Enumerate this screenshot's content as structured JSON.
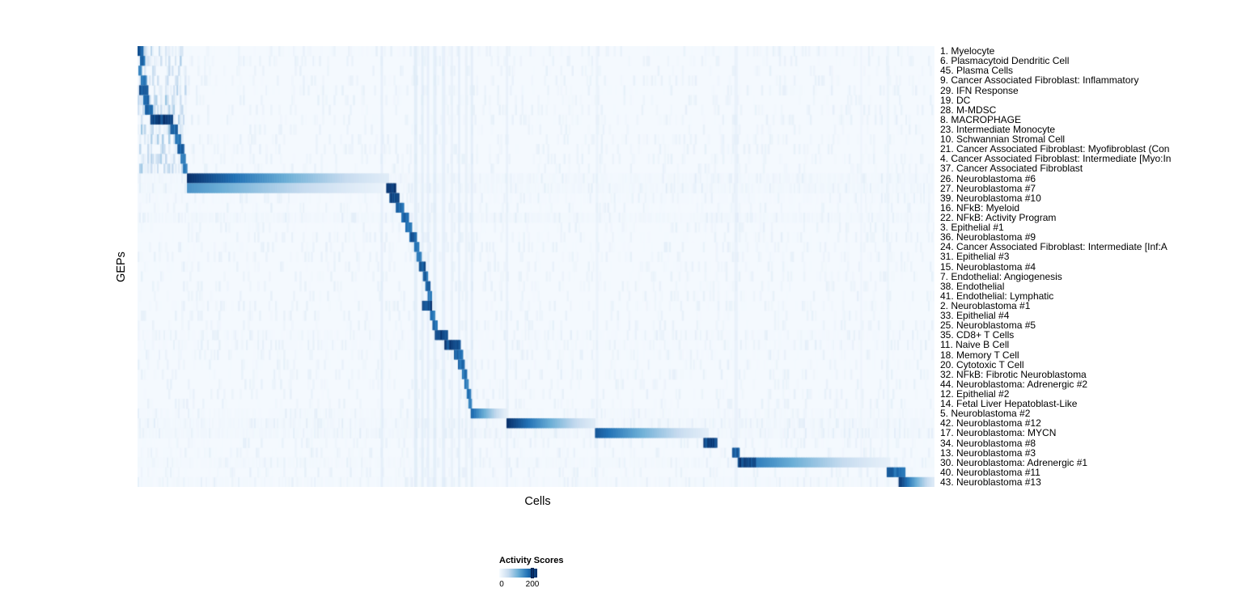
{
  "chart_data": {
    "type": "heatmap",
    "title": "",
    "xlabel": "Cells",
    "ylabel": "GEPs",
    "x_axis_note": "columns are individual cells, unlabeled",
    "legend": {
      "title": "Activity Scores",
      "position": "bottom",
      "tick_labels": [
        "0",
        "200"
      ]
    },
    "colorscale": {
      "palette": "Blues",
      "colors": [
        "#f7fbff",
        "#c6dbef",
        "#6baed6",
        "#2171b5",
        "#08306b"
      ],
      "min": 0,
      "max": 230,
      "tick_values": [
        0,
        200
      ]
    },
    "n_rows": 45,
    "rows": [
      {
        "label": "1. Myelocyte",
        "blocks": [
          [
            0.0,
            0.007,
            210,
            0
          ]
        ],
        "wash": 4
      },
      {
        "label": "6. Plasmacytoid Dendritic Cell",
        "blocks": [
          [
            0.003,
            0.009,
            190,
            0
          ]
        ],
        "wash": 3
      },
      {
        "label": "45. Plasma Cells",
        "blocks": [
          [
            0.001,
            0.005,
            170,
            0
          ]
        ],
        "wash": 3
      },
      {
        "label": "9. Cancer Associated Fibroblast: Inflammatory",
        "blocks": [
          [
            0.004,
            0.011,
            180,
            0
          ]
        ],
        "wash": 3
      },
      {
        "label": "29. IFN Response",
        "blocks": [
          [
            0.002,
            0.013,
            220,
            0
          ]
        ],
        "wash": 4
      },
      {
        "label": "19. DC",
        "blocks": [
          [
            0.007,
            0.014,
            190,
            0
          ]
        ],
        "wash": 3
      },
      {
        "label": "28. M-MDSC",
        "blocks": [
          [
            0.009,
            0.019,
            200,
            0
          ]
        ],
        "wash": 3
      },
      {
        "label": "8. MACROPHAGE",
        "blocks": [
          [
            0.016,
            0.044,
            230,
            0
          ]
        ],
        "wash": 4
      },
      {
        "label": "23. Intermediate Monocyte",
        "blocks": [
          [
            0.041,
            0.05,
            195,
            0
          ]
        ],
        "wash": 3
      },
      {
        "label": "10. Schwannian Stromal Cell",
        "blocks": [
          [
            0.047,
            0.054,
            185,
            0
          ]
        ],
        "wash": 3
      },
      {
        "label": "21. Cancer Associated Fibroblast: Myofibroblast (Con",
        "blocks": [
          [
            0.05,
            0.058,
            195,
            0
          ]
        ],
        "wash": 3
      },
      {
        "label": "4. Cancer Associated Fibroblast: Intermediate [Myo:In",
        "blocks": [
          [
            0.054,
            0.06,
            185,
            0
          ]
        ],
        "wash": 3
      },
      {
        "label": "37. Cancer Associated Fibroblast",
        "blocks": [
          [
            0.057,
            0.062,
            185,
            0
          ]
        ],
        "wash": 3
      },
      {
        "label": "26. Neuroblastoma #6",
        "blocks": [
          [
            0.062,
            0.315,
            230,
            1
          ]
        ],
        "wash": 8
      },
      {
        "label": "27. Neuroblastoma #7",
        "blocks": [
          [
            0.062,
            0.308,
            140,
            1
          ],
          [
            0.312,
            0.324,
            230,
            0
          ]
        ],
        "wash": 8
      },
      {
        "label": "39. Neuroblastoma #10",
        "blocks": [
          [
            0.316,
            0.328,
            230,
            0
          ]
        ],
        "wash": 5
      },
      {
        "label": "16. NFkB: Myeloid",
        "blocks": [
          [
            0.324,
            0.334,
            195,
            0
          ]
        ],
        "wash": 4
      },
      {
        "label": "22. NFkB: Activity Program",
        "blocks": [
          [
            0.331,
            0.34,
            195,
            0
          ]
        ],
        "wash": 8
      },
      {
        "label": "3. Epithelial #1",
        "blocks": [
          [
            0.336,
            0.344,
            195,
            0
          ]
        ],
        "wash": 4
      },
      {
        "label": "36. Neuroblastoma #9",
        "blocks": [
          [
            0.341,
            0.35,
            205,
            0
          ]
        ],
        "wash": 4
      },
      {
        "label": "24. Cancer Associated Fibroblast: Intermediate [Inf:A",
        "blocks": [
          [
            0.347,
            0.353,
            185,
            0
          ]
        ],
        "wash": 4
      },
      {
        "label": "31. Epithelial #3",
        "blocks": [
          [
            0.35,
            0.356,
            185,
            0
          ]
        ],
        "wash": 3
      },
      {
        "label": "15. Neuroblastoma #4",
        "blocks": [
          [
            0.353,
            0.361,
            210,
            0
          ]
        ],
        "wash": 4
      },
      {
        "label": "7. Endothelial: Angiogenesis",
        "blocks": [
          [
            0.358,
            0.364,
            195,
            0
          ]
        ],
        "wash": 3
      },
      {
        "label": "38. Endothelial",
        "blocks": [
          [
            0.361,
            0.367,
            195,
            0
          ]
        ],
        "wash": 3
      },
      {
        "label": "41. Endothelial: Lymphatic",
        "blocks": [
          [
            0.364,
            0.369,
            185,
            0
          ]
        ],
        "wash": 3
      },
      {
        "label": "2. Neuroblastoma #1",
        "blocks": [
          [
            0.357,
            0.369,
            230,
            0
          ]
        ],
        "wash": 4
      },
      {
        "label": "33. Epithelial #4",
        "blocks": [
          [
            0.367,
            0.373,
            185,
            0
          ]
        ],
        "wash": 3
      },
      {
        "label": "25. Neuroblastoma #5",
        "blocks": [
          [
            0.37,
            0.376,
            195,
            0
          ]
        ],
        "wash": 3
      },
      {
        "label": "35. CD8+ T Cells",
        "blocks": [
          [
            0.373,
            0.389,
            230,
            0
          ]
        ],
        "wash": 5
      },
      {
        "label": "11. Naive B Cell",
        "blocks": [
          [
            0.385,
            0.405,
            230,
            0
          ]
        ],
        "wash": 5
      },
      {
        "label": "18. Memory T Cell",
        "blocks": [
          [
            0.397,
            0.408,
            205,
            0
          ]
        ],
        "wash": 4
      },
      {
        "label": "20. Cytotoxic T Cell",
        "blocks": [
          [
            0.402,
            0.41,
            195,
            0
          ]
        ],
        "wash": 4
      },
      {
        "label": "32. NFkB: Fibrotic Neuroblastoma",
        "blocks": [
          [
            0.407,
            0.413,
            185,
            0
          ]
        ],
        "wash": 4
      },
      {
        "label": "44. Neuroblastoma: Adrenergic #2",
        "blocks": [
          [
            0.41,
            0.415,
            175,
            0
          ]
        ],
        "wash": 3
      },
      {
        "label": "12. Epithelial #2",
        "blocks": [
          [
            0.413,
            0.418,
            185,
            0
          ]
        ],
        "wash": 3
      },
      {
        "label": "14. Fetal Liver Hepatoblast-Like",
        "blocks": [
          [
            0.415,
            0.419,
            175,
            0
          ]
        ],
        "wash": 3
      },
      {
        "label": "5. Neuroblastoma #2",
        "blocks": [
          [
            0.418,
            0.463,
            185,
            1
          ]
        ],
        "wash": 6
      },
      {
        "label": "42. Neuroblastoma #12",
        "blocks": [
          [
            0.463,
            0.574,
            230,
            1
          ]
        ],
        "wash": 8
      },
      {
        "label": "17. Neuroblastoma: MYCN",
        "blocks": [
          [
            0.574,
            0.716,
            195,
            1
          ]
        ],
        "wash": 8
      },
      {
        "label": "34. Neuroblastoma #8",
        "blocks": [
          [
            0.71,
            0.727,
            230,
            0
          ]
        ],
        "wash": 4
      },
      {
        "label": "13. Neuroblastoma #3",
        "blocks": [
          [
            0.746,
            0.755,
            210,
            0
          ]
        ],
        "wash": 4
      },
      {
        "label": "30. Neuroblastoma: Adrenergic #1",
        "blocks": [
          [
            0.753,
            0.776,
            230,
            0
          ],
          [
            0.776,
            0.944,
            160,
            1
          ]
        ],
        "wash": 6
      },
      {
        "label": "40. Neuroblastoma #11",
        "blocks": [
          [
            0.94,
            0.963,
            195,
            0
          ]
        ],
        "wash": 4
      },
      {
        "label": "43. Neuroblastoma #13",
        "blocks": [
          [
            0.955,
            1.0,
            225,
            1
          ]
        ],
        "wash": 6
      }
    ],
    "column_streaks": [
      [
        0.305,
        0.003,
        30
      ],
      [
        0.347,
        0.004,
        40
      ],
      [
        0.356,
        0.003,
        35
      ],
      [
        0.363,
        0.003,
        30
      ],
      [
        0.371,
        0.004,
        35
      ],
      [
        0.382,
        0.004,
        30
      ],
      [
        0.393,
        0.003,
        25
      ],
      [
        0.402,
        0.003,
        30
      ],
      [
        0.411,
        0.003,
        25
      ],
      [
        0.418,
        0.003,
        35
      ],
      [
        0.462,
        0.003,
        25
      ],
      [
        0.575,
        0.003,
        20
      ],
      [
        0.749,
        0.004,
        25
      ],
      [
        0.907,
        0.002,
        15
      ],
      [
        0.94,
        0.003,
        20
      ]
    ]
  }
}
